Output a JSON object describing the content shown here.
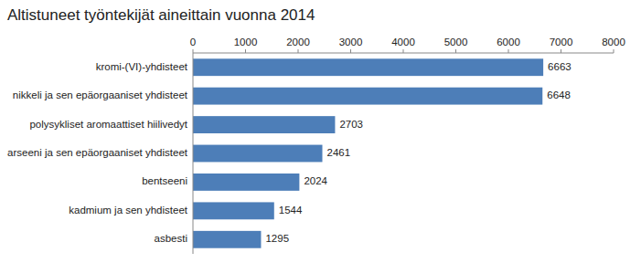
{
  "chart_data": {
    "type": "bar",
    "orientation": "horizontal",
    "title": "Altistuneet työntekijät aineittain vuonna 2014",
    "categories": [
      "asbesti",
      "kadmium ja sen yhdisteet",
      "bentseeni",
      "arseeni ja sen epäorgaaniset yhdisteet",
      "polysykliset aromaattiset hiilivedyt",
      "nikkeli ja sen epäorgaaniset yhdisteet",
      "kromi-(VI)-yhdisteet"
    ],
    "values": [
      1295,
      1544,
      2024,
      2461,
      2703,
      6648,
      6663
    ],
    "color": "#4d7eb8",
    "xlim": [
      0,
      8000
    ],
    "xticks": [
      0,
      1000,
      2000,
      3000,
      4000,
      5000,
      6000,
      7000,
      8000
    ],
    "data_labels": true,
    "grid": false
  }
}
